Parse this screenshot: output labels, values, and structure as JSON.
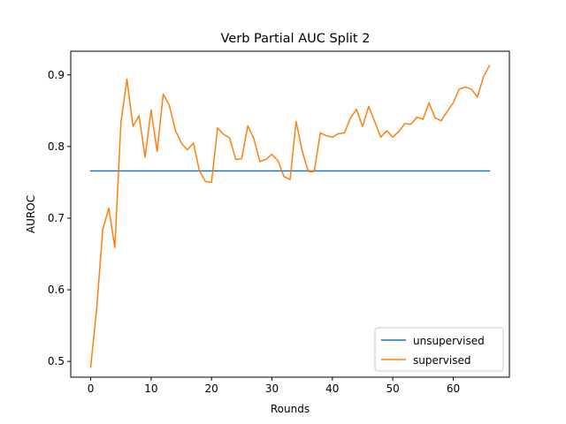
{
  "chart_data": {
    "type": "line",
    "title": "Verb Partial AUC Split 2",
    "xlabel": "Rounds",
    "ylabel": "AUROC",
    "xlim": [
      -3.3,
      69.3
    ],
    "ylim": [
      0.478,
      0.933
    ],
    "xticks": [
      0,
      10,
      20,
      30,
      40,
      50,
      60
    ],
    "yticks": [
      0.5,
      0.6,
      0.7,
      0.8,
      0.9
    ],
    "ytick_labels": [
      "0.5",
      "0.6",
      "0.7",
      "0.8",
      "0.9"
    ],
    "grid": false,
    "legend_position": "lower right",
    "series": [
      {
        "name": "unsupervised",
        "color": "#1f77b4",
        "x": [
          0,
          66
        ],
        "y": [
          0.766,
          0.766
        ]
      },
      {
        "name": "supervised",
        "color": "#ff7f0e",
        "x": [
          0,
          1,
          2,
          3,
          4,
          5,
          6,
          7,
          8,
          9,
          10,
          11,
          12,
          13,
          14,
          15,
          16,
          17,
          18,
          19,
          20,
          21,
          22,
          23,
          24,
          25,
          26,
          27,
          28,
          29,
          30,
          31,
          32,
          33,
          34,
          35,
          36,
          37,
          38,
          39,
          40,
          41,
          42,
          43,
          44,
          45,
          46,
          47,
          48,
          49,
          50,
          51,
          52,
          53,
          54,
          55,
          56,
          57,
          58,
          59,
          60,
          61,
          62,
          63,
          64,
          65,
          66
        ],
        "y": [
          0.492,
          0.575,
          0.684,
          0.714,
          0.659,
          0.833,
          0.894,
          0.828,
          0.843,
          0.785,
          0.851,
          0.793,
          0.873,
          0.858,
          0.823,
          0.805,
          0.795,
          0.805,
          0.766,
          0.751,
          0.75,
          0.826,
          0.817,
          0.812,
          0.782,
          0.783,
          0.829,
          0.811,
          0.779,
          0.782,
          0.789,
          0.78,
          0.758,
          0.754,
          0.835,
          0.794,
          0.765,
          0.765,
          0.819,
          0.815,
          0.813,
          0.818,
          0.819,
          0.84,
          0.852,
          0.828,
          0.856,
          0.835,
          0.813,
          0.822,
          0.813,
          0.821,
          0.832,
          0.831,
          0.841,
          0.838,
          0.861,
          0.84,
          0.836,
          0.849,
          0.861,
          0.88,
          0.883,
          0.88,
          0.869,
          0.897,
          0.913
        ]
      }
    ]
  }
}
